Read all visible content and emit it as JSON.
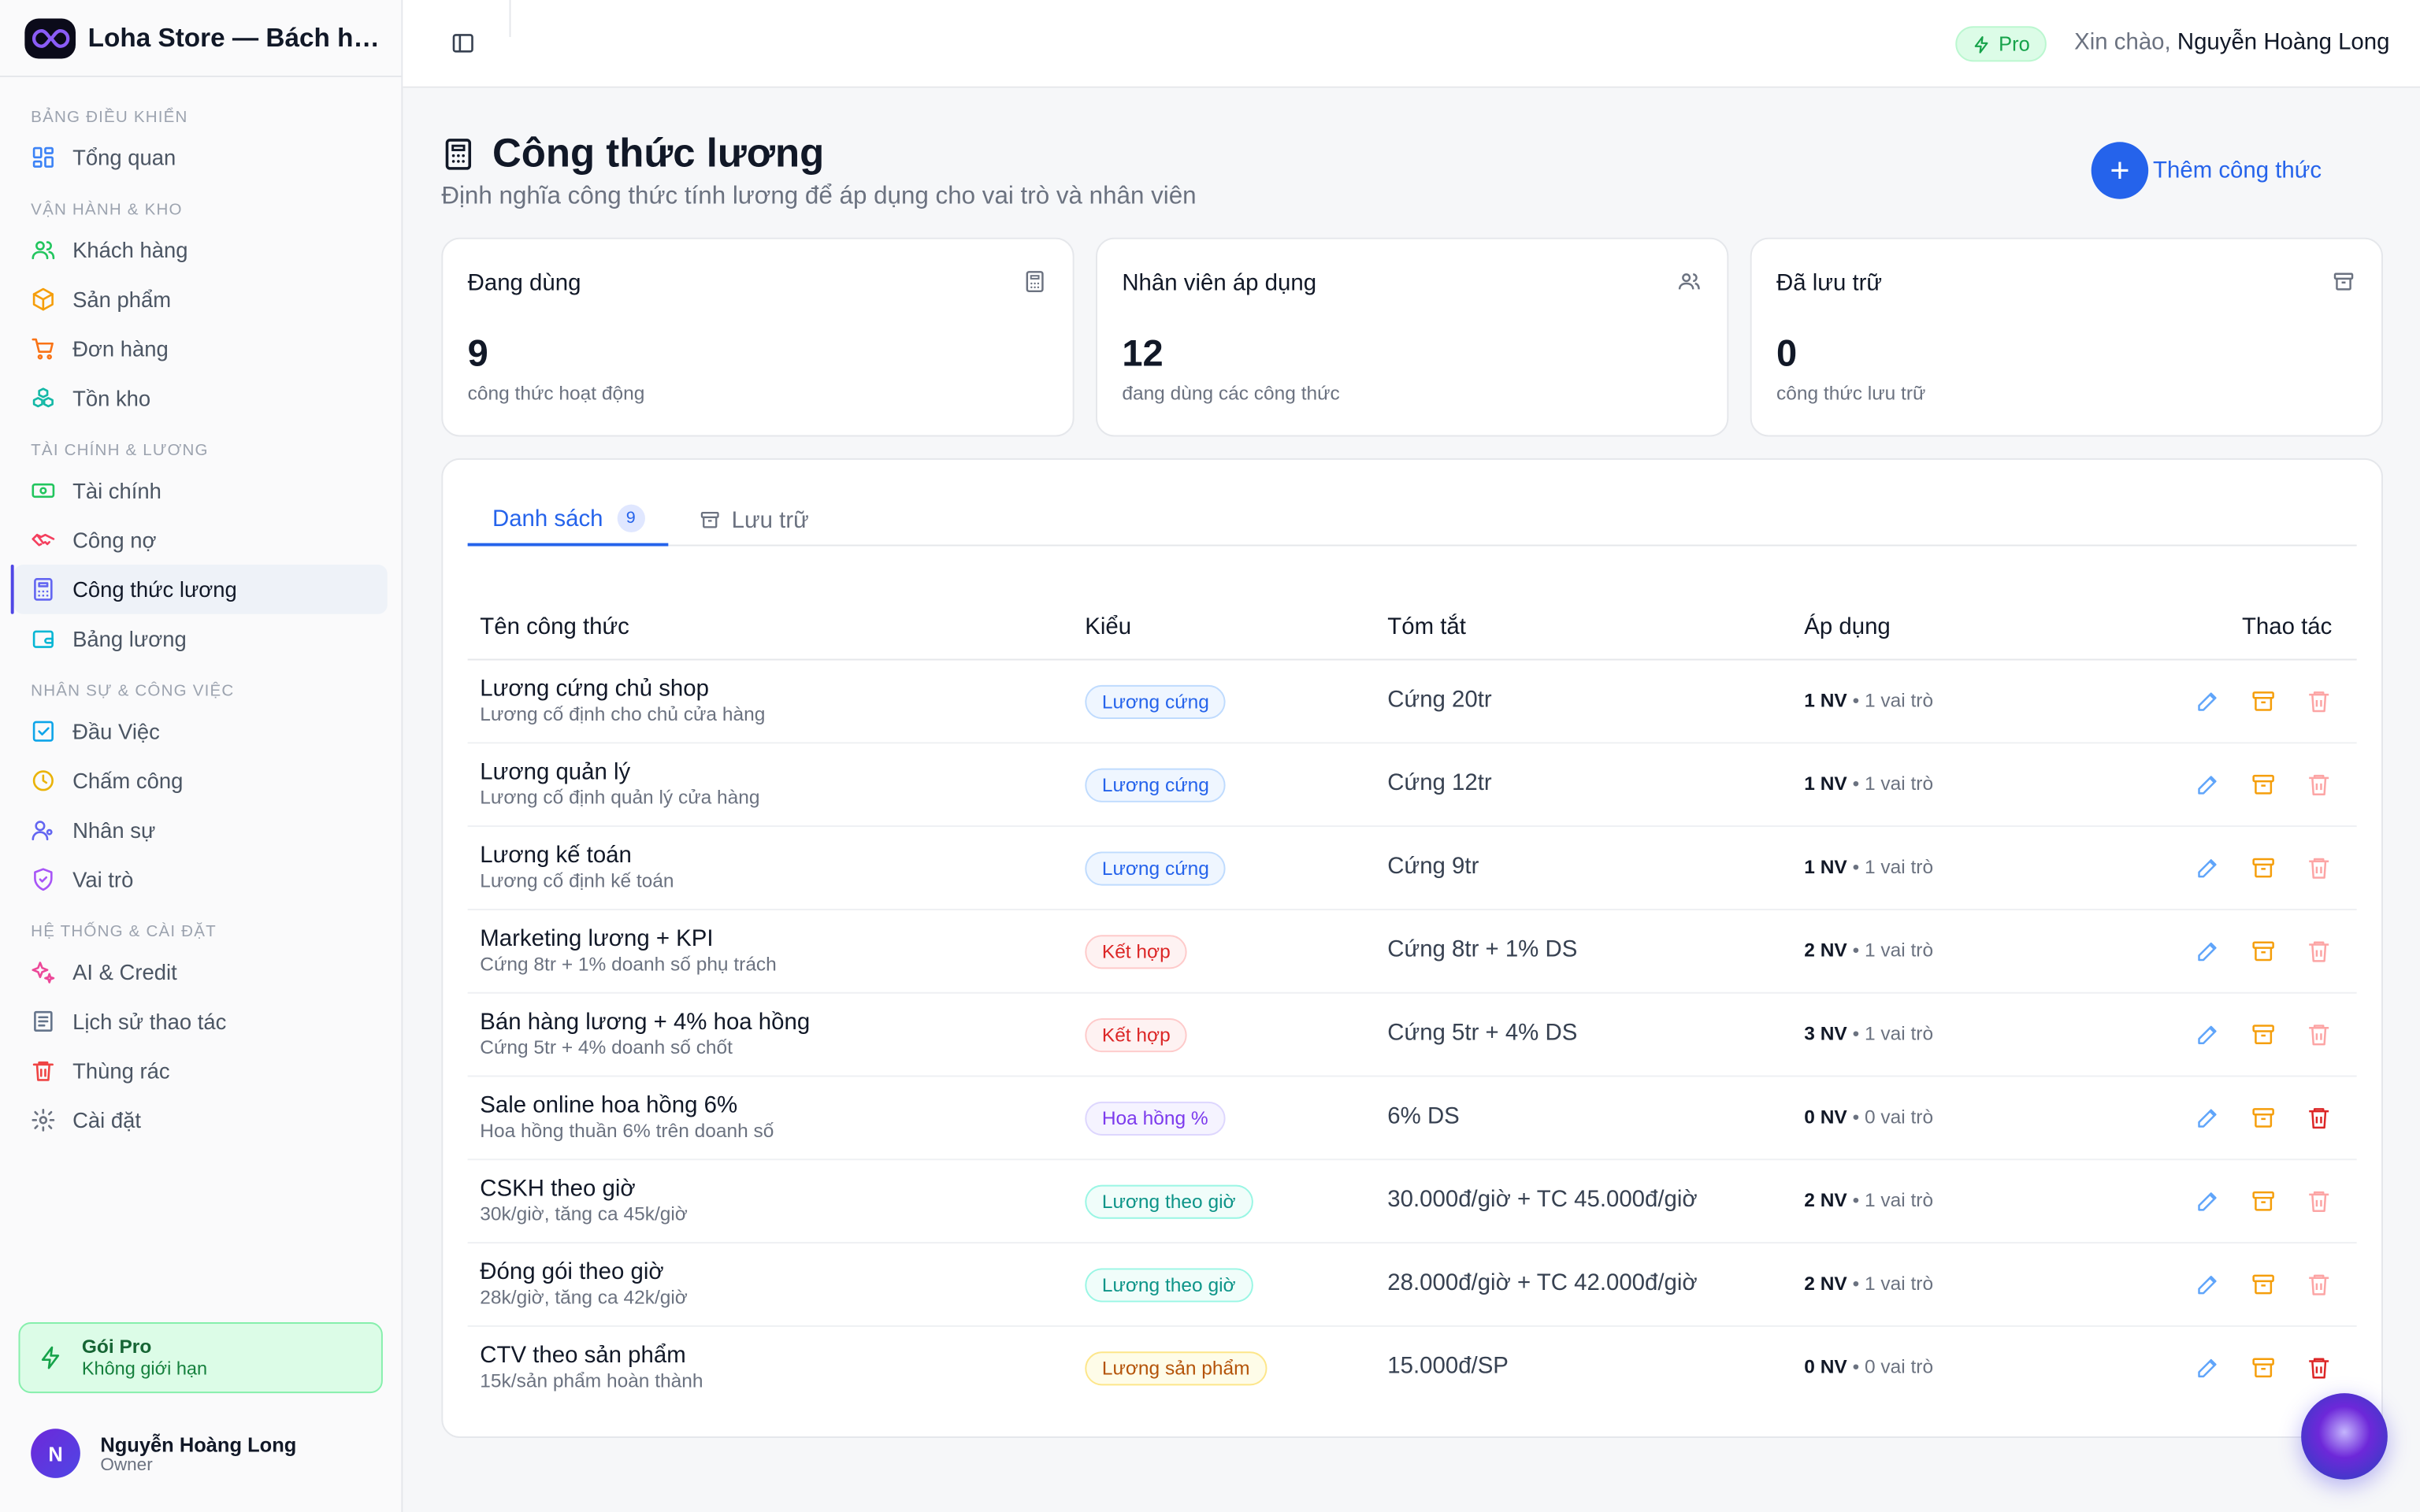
{
  "brand": {
    "title": "Loha Store — Bách hóa ..."
  },
  "sidebar": {
    "sections": [
      {
        "label": "BẢNG ĐIỀU KHIỂN",
        "items": [
          {
            "label": "Tổng quan",
            "icon": "grid-icon"
          }
        ]
      },
      {
        "label": "VẬN HÀNH & KHO",
        "items": [
          {
            "label": "Khách hàng",
            "icon": "users-icon"
          },
          {
            "label": "Sản phẩm",
            "icon": "box-icon"
          },
          {
            "label": "Đơn hàng",
            "icon": "cart-icon"
          },
          {
            "label": "Tồn kho",
            "icon": "boxes-icon"
          }
        ]
      },
      {
        "label": "TÀI CHÍNH & LƯƠNG",
        "items": [
          {
            "label": "Tài chính",
            "icon": "banknote-icon"
          },
          {
            "label": "Công nợ",
            "icon": "handshake-icon"
          },
          {
            "label": "Công thức lương",
            "icon": "calculator-icon",
            "active": true
          },
          {
            "label": "Bảng lương",
            "icon": "wallet-icon"
          }
        ]
      },
      {
        "label": "NHÂN SỰ & CÔNG VIỆC",
        "items": [
          {
            "label": "Đầu Việc",
            "icon": "checkbox-icon"
          },
          {
            "label": "Chấm công",
            "icon": "clock-icon"
          },
          {
            "label": "Nhân sự",
            "icon": "user-icon"
          },
          {
            "label": "Vai trò",
            "icon": "shield-icon"
          }
        ]
      },
      {
        "label": "HỆ THỐNG & CÀI ĐẶT",
        "items": [
          {
            "label": "AI & Credit",
            "icon": "sparkles-icon"
          },
          {
            "label": "Lịch sử thao tác",
            "icon": "history-icon"
          },
          {
            "label": "Thùng rác",
            "icon": "trash-icon"
          },
          {
            "label": "Cài đặt",
            "icon": "gear-icon"
          }
        ]
      }
    ],
    "pro_card": {
      "title": "Gói Pro",
      "subtitle": "Không giới hạn"
    },
    "user": {
      "initial": "N",
      "name": "Nguyễn Hoàng Long",
      "role": "Owner"
    }
  },
  "topbar": {
    "badge": "Pro",
    "greeting": "Xin chào,",
    "user_name": "Nguyễn Hoàng Long"
  },
  "page": {
    "title": "Công thức lương",
    "subtitle": "Định nghĩa công thức tính lương để áp dụng cho vai trò và nhân viên",
    "add_button": "Thêm công thức"
  },
  "stats": [
    {
      "label": "Đang dùng",
      "value": "9",
      "desc": "công thức hoạt động",
      "icon": "calculator-icon"
    },
    {
      "label": "Nhân viên áp dụng",
      "value": "12",
      "desc": "đang dùng các công thức",
      "icon": "users-icon"
    },
    {
      "label": "Đã lưu trữ",
      "value": "0",
      "desc": "công thức lưu trữ",
      "icon": "archive-icon"
    }
  ],
  "tabs": {
    "list": "Danh sách",
    "list_count": "9",
    "archive": "Lưu trữ"
  },
  "table": {
    "headers": {
      "name": "Tên công thức",
      "type": "Kiểu",
      "summary": "Tóm tắt",
      "apply": "Áp dụng",
      "actions": "Thao tác"
    },
    "rows": [
      {
        "name": "Lương cứng chủ shop",
        "desc": "Lương cố định cho chủ cửa hàng",
        "type": "Lương cứng",
        "kind": "fixed",
        "summary": "Cứng 20tr",
        "nv": "1 NV",
        "roles": "• 1 vai trò"
      },
      {
        "name": "Lương quản lý",
        "desc": "Lương cố định quản lý cửa hàng",
        "type": "Lương cứng",
        "kind": "fixed",
        "summary": "Cứng 12tr",
        "nv": "1 NV",
        "roles": "• 1 vai trò"
      },
      {
        "name": "Lương kế toán",
        "desc": "Lương cố định kế toán",
        "type": "Lương cứng",
        "kind": "fixed",
        "summary": "Cứng 9tr",
        "nv": "1 NV",
        "roles": "• 1 vai trò"
      },
      {
        "name": "Marketing lương + KPI",
        "desc": "Cứng 8tr + 1% doanh số phụ trách",
        "type": "Kết hợp",
        "kind": "mixed",
        "summary": "Cứng 8tr + 1% DS",
        "nv": "2 NV",
        "roles": "• 1 vai trò"
      },
      {
        "name": "Bán hàng lương + 4% hoa hồng",
        "desc": "Cứng 5tr + 4% doanh số chốt",
        "type": "Kết hợp",
        "kind": "mixed",
        "summary": "Cứng 5tr + 4% DS",
        "nv": "3 NV",
        "roles": "• 1 vai trò"
      },
      {
        "name": "Sale online hoa hồng 6%",
        "desc": "Hoa hồng thuần 6% trên doanh số",
        "type": "Hoa hồng %",
        "kind": "comm",
        "summary": "6% DS",
        "nv": "0 NV",
        "roles": "• 0 vai trò",
        "delete_enabled": true
      },
      {
        "name": "CSKH theo giờ",
        "desc": "30k/giờ, tăng ca 45k/giờ",
        "type": "Lương theo giờ",
        "kind": "hourly",
        "summary": "30.000đ/giờ + TC 45.000đ/giờ",
        "nv": "2 NV",
        "roles": "• 1 vai trò"
      },
      {
        "name": "Đóng gói theo giờ",
        "desc": "28k/giờ, tăng ca 42k/giờ",
        "type": "Lương theo giờ",
        "kind": "hourly",
        "summary": "28.000đ/giờ + TC 42.000đ/giờ",
        "nv": "2 NV",
        "roles": "• 1 vai trò"
      },
      {
        "name": "CTV theo sản phẩm",
        "desc": "15k/sản phẩm hoàn thành",
        "type": "Lương sản phẩm",
        "kind": "product",
        "summary": "15.000đ/SP",
        "nv": "0 NV",
        "roles": "• 0 vai trò",
        "delete_enabled": true
      }
    ]
  },
  "colors": {
    "accent": "#2563eb",
    "active_indicator": "#4f46e5",
    "pro_green": "#16a34a",
    "edit": "#60a5fa",
    "archive": "#f59e0b",
    "delete": "#dc2626",
    "delete_disabled": "#fca5a5"
  }
}
